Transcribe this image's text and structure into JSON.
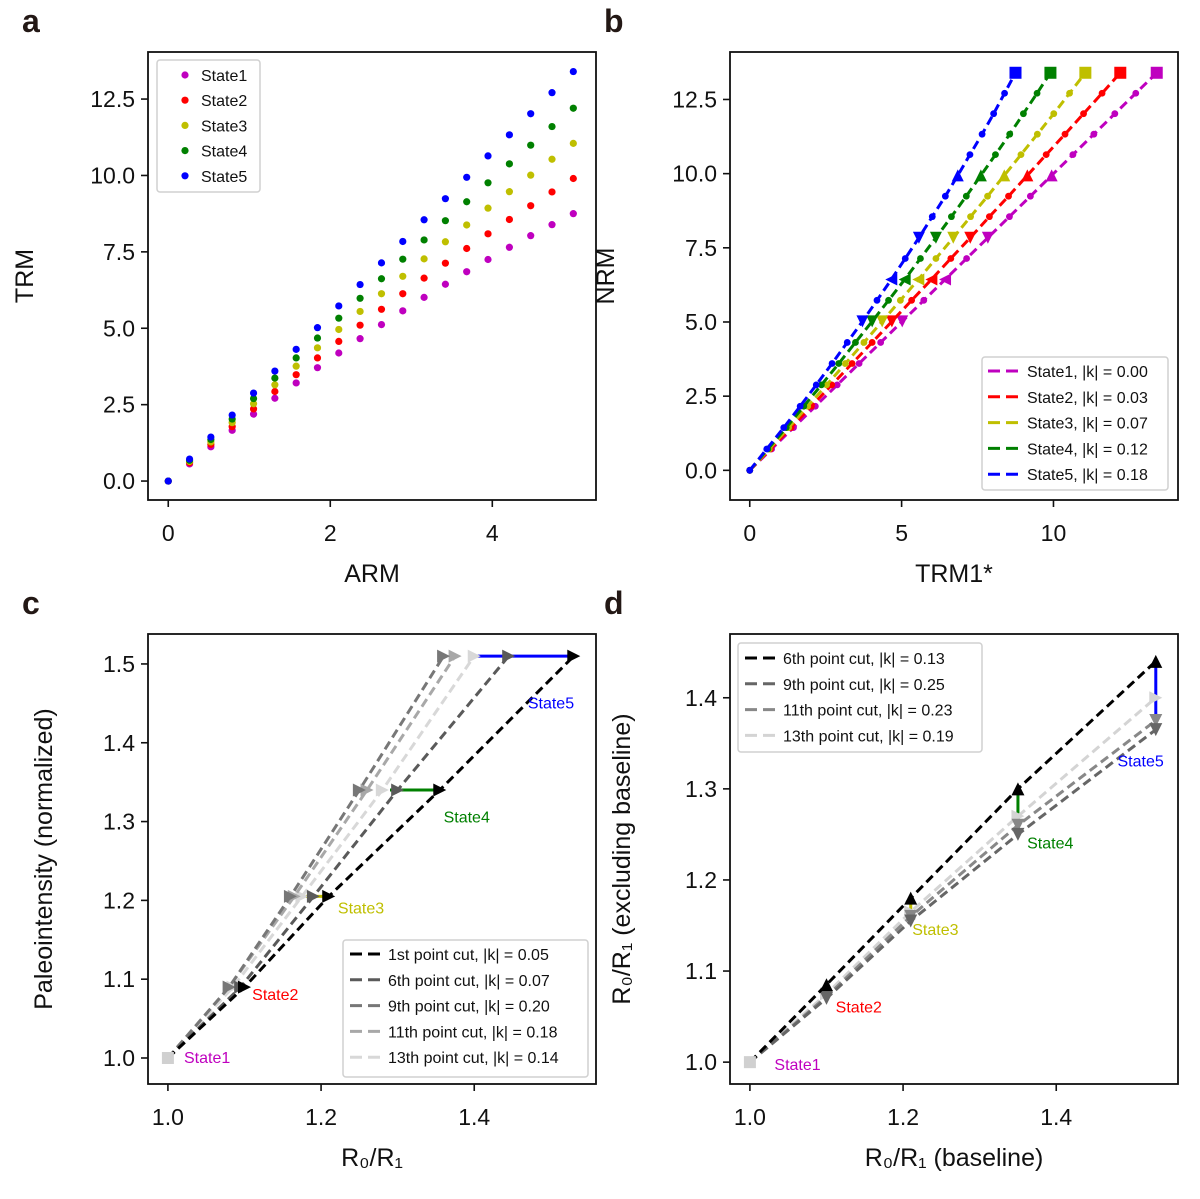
{
  "chart_data": [
    {
      "panel_label": "a",
      "type": "scatter",
      "xlabel": "ARM",
      "ylabel": "TRM",
      "xlim": [
        -0.25,
        5.28
      ],
      "ylim": [
        -0.62,
        14.04
      ],
      "xticks": [
        0,
        2,
        4
      ],
      "xtick_labels": [
        "0",
        "2",
        "4"
      ],
      "yticks": [
        0,
        2.5,
        5,
        7.5,
        10,
        12.5
      ],
      "ytick_labels": [
        "0.0",
        "2.5",
        "5.0",
        "7.5",
        "10.0",
        "12.5"
      ],
      "grid": false,
      "legend": "top-left",
      "x": [
        0,
        0.263,
        0.526,
        0.789,
        1.053,
        1.316,
        1.579,
        1.842,
        2.105,
        2.368,
        2.632,
        2.895,
        3.158,
        3.421,
        3.684,
        3.947,
        4.211,
        4.474,
        4.737,
        5.0
      ],
      "series": [
        {
          "name": "State1",
          "color": "#bf00bf",
          "y": [
            0,
            0.56,
            1.12,
            1.66,
            2.19,
            2.71,
            3.21,
            3.71,
            4.19,
            4.66,
            5.12,
            5.57,
            6.01,
            6.44,
            6.85,
            7.25,
            7.65,
            8.03,
            8.39,
            8.75
          ]
        },
        {
          "name": "State2",
          "color": "#ff0000",
          "y": [
            0,
            0.6,
            1.2,
            1.78,
            2.36,
            2.93,
            3.48,
            4.03,
            4.57,
            5.1,
            5.62,
            6.13,
            6.64,
            7.13,
            7.61,
            8.09,
            8.56,
            9.01,
            9.46,
            9.9
          ]
        },
        {
          "name": "State3",
          "color": "#bfbf00",
          "y": [
            0,
            0.64,
            1.28,
            1.91,
            2.53,
            3.15,
            3.76,
            4.36,
            4.96,
            5.55,
            6.13,
            6.7,
            7.27,
            7.83,
            8.38,
            8.93,
            9.47,
            10.01,
            10.53,
            11.05
          ]
        },
        {
          "name": "State4",
          "color": "#008000",
          "y": [
            0,
            0.68,
            1.36,
            2.03,
            2.7,
            3.37,
            4.03,
            4.68,
            5.33,
            5.98,
            6.62,
            7.26,
            7.89,
            8.52,
            9.14,
            9.76,
            10.38,
            10.99,
            11.6,
            12.2
          ]
        },
        {
          "name": "State5",
          "color": "#0000ff",
          "y": [
            0,
            0.72,
            1.44,
            2.16,
            2.88,
            3.6,
            4.31,
            5.02,
            5.73,
            6.43,
            7.14,
            7.84,
            8.55,
            9.24,
            9.94,
            10.64,
            11.33,
            12.02,
            12.71,
            13.4
          ]
        }
      ]
    },
    {
      "panel_label": "b",
      "type": "line",
      "xlabel": "TRM1*",
      "ylabel": "NRM",
      "xlim": [
        -0.65,
        14.1
      ],
      "ylim": [
        -1.0,
        14.1
      ],
      "xticks": [
        0,
        5,
        10
      ],
      "xtick_labels": [
        "0",
        "5",
        "10"
      ],
      "yticks": [
        0,
        2.5,
        5,
        7.5,
        10,
        12.5
      ],
      "ytick_labels": [
        "0.0",
        "2.5",
        "5.0",
        "7.5",
        "10.0",
        "12.5"
      ],
      "grid": false,
      "legend": "bottom-right",
      "line_style": "dashed",
      "special_markers": {
        "7": "triangle-down",
        "9": "triangle-left",
        "11": "triangle-down",
        "14": "triangle-up",
        "19": "square"
      },
      "y": [
        0,
        0.72,
        1.44,
        2.16,
        2.88,
        3.6,
        4.31,
        5.02,
        5.73,
        6.43,
        7.14,
        7.84,
        8.55,
        9.24,
        9.94,
        10.64,
        11.33,
        12.02,
        12.71,
        13.4
      ],
      "series": [
        {
          "name": "State1, |k| = 0.00",
          "color": "#bf00bf",
          "x": [
            0,
            0.72,
            1.44,
            2.16,
            2.88,
            3.6,
            4.31,
            5.02,
            5.73,
            6.43,
            7.14,
            7.84,
            8.55,
            9.24,
            9.94,
            10.64,
            11.33,
            12.02,
            12.71,
            13.4
          ]
        },
        {
          "name": "State2, |k| = 0.03",
          "color": "#ff0000",
          "x": [
            0,
            0.68,
            1.36,
            2.03,
            2.7,
            3.37,
            4.03,
            4.68,
            5.33,
            5.98,
            6.62,
            7.26,
            7.89,
            8.52,
            9.14,
            9.76,
            10.38,
            10.99,
            11.6,
            12.2
          ]
        },
        {
          "name": "State3, |k| = 0.07",
          "color": "#bfbf00",
          "x": [
            0,
            0.64,
            1.28,
            1.91,
            2.53,
            3.15,
            3.76,
            4.36,
            4.96,
            5.55,
            6.13,
            6.7,
            7.27,
            7.83,
            8.38,
            8.93,
            9.47,
            10.01,
            10.53,
            11.05
          ]
        },
        {
          "name": "State4, |k| = 0.12",
          "color": "#008000",
          "x": [
            0,
            0.6,
            1.2,
            1.78,
            2.36,
            2.93,
            3.48,
            4.03,
            4.57,
            5.1,
            5.62,
            6.13,
            6.64,
            7.13,
            7.61,
            8.09,
            8.56,
            9.01,
            9.46,
            9.9
          ]
        },
        {
          "name": "State5, |k| = 0.18",
          "color": "#0000ff",
          "x": [
            0,
            0.56,
            1.12,
            1.66,
            2.19,
            2.71,
            3.21,
            3.71,
            4.19,
            4.66,
            5.12,
            5.57,
            6.01,
            6.44,
            6.85,
            7.25,
            7.65,
            8.03,
            8.39,
            8.75
          ]
        }
      ]
    },
    {
      "panel_label": "c",
      "type": "line",
      "xlabel": "R₀/R₁",
      "ylabel": "Paleointensity (normalized)",
      "xlim": [
        0.974,
        1.559
      ],
      "ylim": [
        0.967,
        1.538
      ],
      "xticks": [
        1.0,
        1.2,
        1.4
      ],
      "xtick_labels": [
        "1.0",
        "1.2",
        "1.4"
      ],
      "yticks": [
        1.0,
        1.1,
        1.2,
        1.3,
        1.4,
        1.5
      ],
      "ytick_labels": [
        "1.0",
        "1.1",
        "1.2",
        "1.3",
        "1.4",
        "1.5"
      ],
      "grid": false,
      "legend": "bottom-right",
      "line_style": "dashed",
      "marker": "triangle-right",
      "start_marker": "square",
      "y": [
        1.0,
        1.09,
        1.205,
        1.34,
        1.51
      ],
      "series": [
        {
          "name": "1st point cut, |k| = 0.05",
          "color": "#000000",
          "x": [
            1.0,
            1.1,
            1.21,
            1.355,
            1.53
          ]
        },
        {
          "name": "6th point cut, |k| = 0.07",
          "color": "#5a5a5a",
          "x": [
            1.0,
            1.095,
            1.19,
            1.3,
            1.445
          ]
        },
        {
          "name": "9th point cut, |k| = 0.20",
          "color": "#777777",
          "x": [
            1.0,
            1.08,
            1.16,
            1.25,
            1.36
          ]
        },
        {
          "name": "11th point cut, |k| = 0.18",
          "color": "#a8a8a8",
          "x": [
            1.0,
            1.08,
            1.165,
            1.26,
            1.375
          ]
        },
        {
          "name": "13th point cut, |k| = 0.14",
          "color": "#d8d8d8",
          "x": [
            1.0,
            1.085,
            1.175,
            1.28,
            1.4
          ]
        }
      ],
      "highlights": [
        {
          "state": "State3",
          "color": "#bfbf00",
          "from": [
            1.18,
            1.205
          ],
          "to": [
            1.21,
            1.205
          ]
        },
        {
          "state": "State4",
          "color": "#008000",
          "from": [
            1.29,
            1.34
          ],
          "to": [
            1.355,
            1.34
          ]
        },
        {
          "state": "State5",
          "color": "#0000ff",
          "from": [
            1.4,
            1.51
          ],
          "to": [
            1.53,
            1.51
          ]
        }
      ],
      "annotations": [
        {
          "text": "State1",
          "color": "#bf00bf",
          "x": 1.021,
          "y": 1.0
        },
        {
          "text": "State2",
          "color": "#ff0000",
          "x": 1.11,
          "y": 1.08
        },
        {
          "text": "State3",
          "color": "#bfbf00",
          "x": 1.222,
          "y": 1.19
        },
        {
          "text": "State4",
          "color": "#008000",
          "x": 1.36,
          "y": 1.305
        },
        {
          "text": "State5",
          "color": "#0000ff",
          "x": 1.47,
          "y": 1.45
        }
      ]
    },
    {
      "panel_label": "d",
      "type": "line",
      "xlabel": "R₀/R₁ (baseline)",
      "ylabel": "R₀/R₁ (excluding baseline)",
      "xlim": [
        0.974,
        1.559
      ],
      "ylim": [
        0.976,
        1.47
      ],
      "xticks": [
        1.0,
        1.2,
        1.4
      ],
      "xtick_labels": [
        "1.0",
        "1.2",
        "1.4"
      ],
      "yticks": [
        1.0,
        1.1,
        1.2,
        1.3,
        1.4
      ],
      "ytick_labels": [
        "1.0",
        "1.1",
        "1.2",
        "1.3",
        "1.4"
      ],
      "grid": false,
      "legend": "top-left",
      "line_style": "dashed",
      "start_marker": "square",
      "x": [
        1.0,
        1.1,
        1.21,
        1.35,
        1.53
      ],
      "series": [
        {
          "name": "6th point cut, |k| = 0.13",
          "color": "#000000",
          "marker": "triangle-up",
          "y": [
            1.0,
            1.085,
            1.18,
            1.3,
            1.44
          ]
        },
        {
          "name": "9th point cut, |k| = 0.25",
          "color": "#666666",
          "marker": "triangle-down",
          "y": [
            1.0,
            1.07,
            1.155,
            1.25,
            1.365
          ]
        },
        {
          "name": "11th point cut, |k| = 0.23",
          "color": "#888888",
          "marker": "triangle-down",
          "y": [
            1.0,
            1.072,
            1.16,
            1.26,
            1.375
          ]
        },
        {
          "name": "13th point cut, |k| = 0.19",
          "color": "#d4d4d4",
          "marker": "triangle-right",
          "y": [
            1.0,
            1.075,
            1.165,
            1.27,
            1.4
          ]
        }
      ],
      "highlights": [
        {
          "state": "State3",
          "color": "#bfbf00",
          "from": [
            1.21,
            1.16
          ],
          "to": [
            1.21,
            1.18
          ]
        },
        {
          "state": "State4",
          "color": "#008000",
          "from": [
            1.35,
            1.25
          ],
          "to": [
            1.35,
            1.3
          ]
        },
        {
          "state": "State5",
          "color": "#0000ff",
          "from": [
            1.53,
            1.365
          ],
          "to": [
            1.53,
            1.44
          ]
        }
      ],
      "annotations": [
        {
          "text": "State1",
          "color": "#bf00bf",
          "x": 1.032,
          "y": 0.997
        },
        {
          "text": "State2",
          "color": "#ff0000",
          "x": 1.112,
          "y": 1.06
        },
        {
          "text": "State3",
          "color": "#bfbf00",
          "x": 1.212,
          "y": 1.145
        },
        {
          "text": "State4",
          "color": "#008000",
          "x": 1.362,
          "y": 1.24
        },
        {
          "text": "State5",
          "color": "#0000ff",
          "x": 1.48,
          "y": 1.33
        }
      ]
    }
  ]
}
